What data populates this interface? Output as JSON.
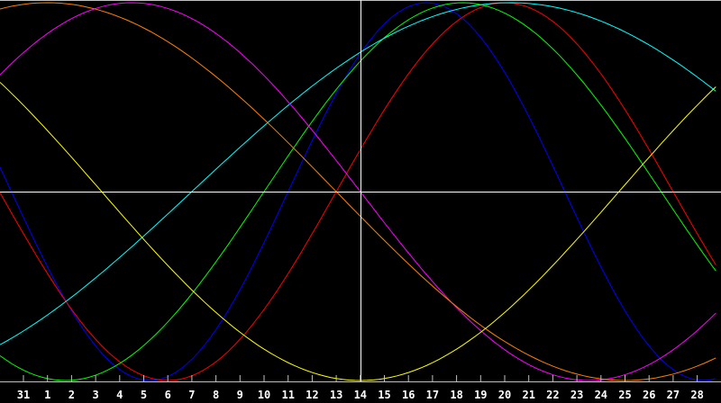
{
  "chart_data": {
    "type": "line",
    "categories": [
      "31",
      "1",
      "2",
      "3",
      "4",
      "5",
      "6",
      "7",
      "8",
      "9",
      "10",
      "11",
      "12",
      "13",
      "14",
      "15",
      "16",
      "17",
      "18",
      "19",
      "20",
      "21",
      "22",
      "23",
      "24",
      "25",
      "26",
      "27",
      "28"
    ],
    "highlight_category": "14",
    "ylim": [
      -1,
      1
    ],
    "grid": false,
    "axis_color": "#c0c0c0",
    "crosshair_color": "#ffffff",
    "series": [
      {
        "color": "#0000ff",
        "period_days": 23,
        "rising_zero_index": 11
      },
      {
        "color": "#ff0000",
        "period_days": 28,
        "rising_zero_index": 13
      },
      {
        "color": "#00ff00",
        "period_days": 33,
        "rising_zero_index": 10
      },
      {
        "color": "#00ffff",
        "period_days": 53,
        "rising_zero_index": 7
      },
      {
        "color": "#ff00ff",
        "period_days": 38,
        "rising_zero_index": -5
      },
      {
        "color": "#ff8000",
        "period_days": 48,
        "rising_zero_index": -11
      },
      {
        "color": "#ffff00",
        "period_days": 43,
        "rising_zero_index": 24.75
      }
    ]
  }
}
